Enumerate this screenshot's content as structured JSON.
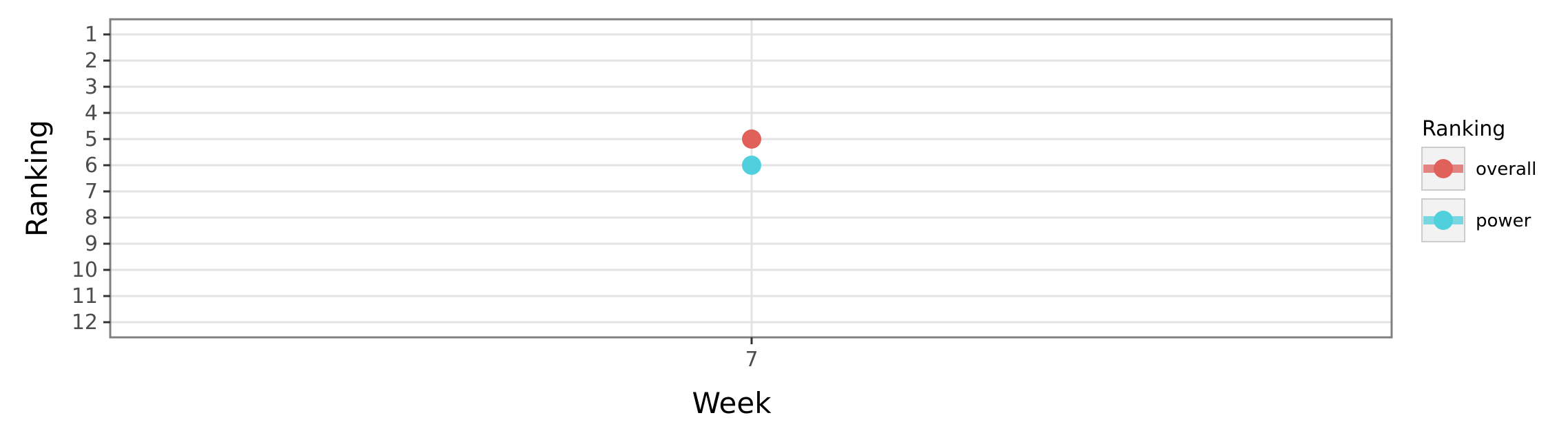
{
  "chart_data": {
    "type": "line",
    "title": "",
    "xlabel": "Week",
    "ylabel": "Ranking",
    "x": [
      7
    ],
    "x_ticks": [
      "7"
    ],
    "y_ticks": [
      "1",
      "2",
      "3",
      "4",
      "5",
      "6",
      "7",
      "8",
      "9",
      "10",
      "11",
      "12"
    ],
    "ylim": [
      1,
      12
    ],
    "y_reversed": true,
    "grid": true,
    "legend": {
      "title": "Ranking",
      "position": "right"
    },
    "series": [
      {
        "name": "overall",
        "values": [
          5
        ],
        "color": "#e0605a"
      },
      {
        "name": "power",
        "values": [
          6
        ],
        "color": "#4fd0dc"
      }
    ]
  }
}
